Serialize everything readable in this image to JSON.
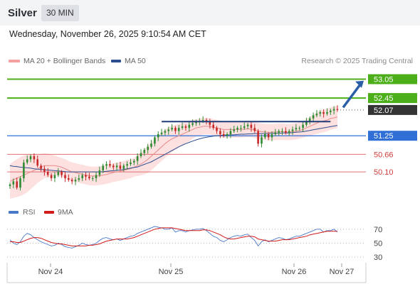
{
  "header": {
    "title": "Silver",
    "timeframe": "30 MIN"
  },
  "date_line": "Wednesday, November 26, 2025 9:10:54 AM CET",
  "legend": {
    "bollinger": "MA 20 + Bollinger Bands",
    "ma50": "MA 50"
  },
  "source": "Research © 2025 Trading Central",
  "rsi_legend": {
    "rsi": "RSI",
    "ma9": "9MA"
  },
  "colors": {
    "bollinger": "#f4a0a0",
    "ma50": "#2c4f8f",
    "up": "#2e8b32",
    "down": "#c62828",
    "resistance": "#4caf1a",
    "support": "#2f6fd6",
    "level": "#e07070",
    "current": "#333333"
  },
  "chart_data": [
    {
      "type": "candlestick",
      "title": "Silver",
      "timeframe": "30 MIN",
      "x_ticks": [
        "Nov 24",
        "Nov 25",
        "Nov 26",
        "Nov 27"
      ],
      "ylim": [
        49.2,
        53.4
      ],
      "price_levels": [
        {
          "value": 53.05,
          "label": "53.05",
          "kind": "target-resistance"
        },
        {
          "value": 52.45,
          "label": "52.45",
          "kind": "resistance"
        },
        {
          "value": 52.07,
          "label": "52.07",
          "kind": "current"
        },
        {
          "value": 51.25,
          "label": "51.25",
          "kind": "pivot"
        },
        {
          "value": 50.66,
          "label": "50.66",
          "kind": "support"
        },
        {
          "value": 50.1,
          "label": "50.10",
          "kind": "support"
        }
      ],
      "close_series": [
        49.7,
        49.8,
        49.6,
        49.9,
        50.4,
        50.5,
        50.6,
        50.5,
        50.3,
        50.2,
        50.1,
        50.0,
        49.9,
        50.0,
        50.1,
        50.0,
        49.9,
        49.85,
        49.8,
        49.85,
        49.9,
        50.0,
        49.95,
        49.9,
        49.9,
        50.0,
        50.15,
        50.3,
        50.35,
        50.3,
        50.25,
        50.3,
        50.2,
        50.3,
        50.35,
        50.4,
        50.45,
        50.6,
        50.7,
        50.8,
        50.9,
        51.0,
        51.2,
        51.3,
        51.35,
        51.4,
        51.45,
        51.5,
        51.4,
        51.5,
        51.55,
        51.5,
        51.6,
        51.65,
        51.7,
        51.72,
        51.75,
        51.7,
        51.6,
        51.5,
        51.4,
        51.3,
        51.25,
        51.3,
        51.4,
        51.45,
        51.5,
        51.5,
        51.55,
        51.6,
        51.5,
        51.4,
        51.0,
        51.2,
        51.3,
        51.2,
        51.3,
        51.35,
        51.4,
        51.4,
        51.35,
        51.4,
        51.45,
        51.5,
        51.5,
        51.6,
        51.7,
        51.8,
        51.9,
        51.95,
        52.0,
        51.95,
        52.0,
        52.05,
        52.1,
        52.07
      ],
      "ma20_series": [
        49.8,
        49.85,
        49.9,
        49.95,
        50.0,
        50.05,
        50.1,
        50.15,
        50.2,
        50.25,
        50.3,
        50.3,
        50.3,
        50.3,
        50.28,
        50.25,
        50.2,
        50.15,
        50.1,
        50.08,
        50.05,
        50.03,
        50.0,
        49.98,
        49.97,
        49.97,
        49.98,
        50.0,
        50.02,
        50.05,
        50.08,
        50.1,
        50.12,
        50.15,
        50.18,
        50.2,
        50.25,
        50.3,
        50.35,
        50.42,
        50.5,
        50.6,
        50.7,
        50.8,
        50.9,
        51.0,
        51.08,
        51.15,
        51.2,
        51.25,
        51.3,
        51.35,
        51.4,
        51.45,
        51.5,
        51.52,
        51.55,
        51.55,
        51.55,
        51.52,
        51.5,
        51.47,
        51.45,
        51.45,
        51.45,
        51.45,
        51.45,
        51.45,
        51.46,
        51.47,
        51.46,
        51.44,
        51.4,
        51.38,
        51.37,
        51.36,
        51.36,
        51.37,
        51.38,
        51.38,
        51.37,
        51.37,
        51.38,
        51.4,
        51.42,
        51.45,
        51.5,
        51.55,
        51.6,
        51.65,
        51.7,
        51.72,
        51.75,
        51.8,
        51.82,
        51.85
      ],
      "ma50_series": [
        50.3,
        50.28,
        50.27,
        50.25,
        50.24,
        50.23,
        50.22,
        50.2,
        50.19,
        50.18,
        50.17,
        50.16,
        50.15,
        50.14,
        50.13,
        50.12,
        50.11,
        50.1,
        50.1,
        50.1,
        50.1,
        50.1,
        50.1,
        50.1,
        50.1,
        50.1,
        50.1,
        50.11,
        50.12,
        50.13,
        50.14,
        50.15,
        50.16,
        50.18,
        50.2,
        50.22,
        50.24,
        50.26,
        50.3,
        50.34,
        50.38,
        50.42,
        50.48,
        50.54,
        50.6,
        50.66,
        50.72,
        50.78,
        50.84,
        50.9,
        50.95,
        51.0,
        51.04,
        51.08,
        51.12,
        51.15,
        51.18,
        51.2,
        51.22,
        51.24,
        51.25,
        51.26,
        51.27,
        51.27,
        51.28,
        51.28,
        51.29,
        51.3,
        51.3,
        51.31,
        51.31,
        51.32,
        51.32,
        51.32,
        51.32,
        51.32,
        51.33,
        51.33,
        51.33,
        51.34,
        51.34,
        51.34,
        51.35,
        51.36,
        51.37,
        51.38,
        51.4,
        51.42,
        51.44,
        51.46,
        51.48,
        51.5,
        51.52,
        51.54,
        51.56,
        51.58
      ],
      "bb_halfwidth_series": [
        0.55,
        0.58,
        0.6,
        0.62,
        0.62,
        0.6,
        0.55,
        0.5,
        0.45,
        0.42,
        0.4,
        0.38,
        0.35,
        0.33,
        0.3,
        0.3,
        0.3,
        0.3,
        0.3,
        0.3,
        0.3,
        0.3,
        0.3,
        0.3,
        0.3,
        0.3,
        0.3,
        0.3,
        0.3,
        0.3,
        0.3,
        0.3,
        0.3,
        0.3,
        0.3,
        0.3,
        0.3,
        0.33,
        0.36,
        0.4,
        0.43,
        0.45,
        0.45,
        0.45,
        0.45,
        0.45,
        0.44,
        0.42,
        0.4,
        0.38,
        0.36,
        0.34,
        0.32,
        0.3,
        0.28,
        0.27,
        0.26,
        0.26,
        0.26,
        0.26,
        0.26,
        0.26,
        0.26,
        0.26,
        0.26,
        0.26,
        0.26,
        0.26,
        0.26,
        0.26,
        0.26,
        0.26,
        0.26,
        0.26,
        0.26,
        0.26,
        0.26,
        0.26,
        0.26,
        0.26,
        0.26,
        0.26,
        0.26,
        0.26,
        0.26,
        0.26,
        0.28,
        0.3,
        0.32,
        0.34,
        0.36,
        0.36,
        0.36,
        0.36,
        0.36,
        0.36
      ],
      "neckline": {
        "value": 51.7,
        "from_index": 44,
        "to_index": 93
      },
      "projection_arrow": {
        "from_value": 52.15,
        "to_value": 53.0
      }
    },
    {
      "type": "line",
      "title": "RSI",
      "ylim": [
        20,
        80
      ],
      "y_ticks": [
        70,
        50,
        30
      ],
      "series": [
        {
          "name": "RSI",
          "values": [
            55,
            50,
            48,
            52,
            60,
            64,
            62,
            58,
            55,
            52,
            50,
            48,
            46,
            47,
            50,
            48,
            45,
            44,
            43,
            45,
            47,
            50,
            48,
            47,
            48,
            50,
            54,
            57,
            58,
            56,
            55,
            56,
            54,
            56,
            58,
            60,
            61,
            64,
            66,
            68,
            70,
            72,
            74,
            73,
            72,
            70,
            70,
            72,
            66,
            68,
            68,
            66,
            68,
            69,
            70,
            70,
            71,
            68,
            64,
            60,
            58,
            54,
            52,
            55,
            58,
            60,
            61,
            60,
            62,
            63,
            58,
            54,
            46,
            52,
            55,
            52,
            54,
            56,
            58,
            57,
            55,
            56,
            58,
            60,
            60,
            62,
            64,
            66,
            68,
            70,
            70,
            66,
            68,
            68,
            70,
            66
          ]
        },
        {
          "name": "9MA",
          "values": [
            52,
            52,
            51,
            51,
            53,
            55,
            57,
            58,
            58,
            57,
            55,
            53,
            51,
            50,
            49,
            49,
            48,
            47,
            46,
            46,
            46,
            46,
            46,
            47,
            47,
            48,
            49,
            51,
            53,
            54,
            55,
            56,
            56,
            56,
            56,
            57,
            58,
            60,
            62,
            64,
            66,
            68,
            70,
            71,
            72,
            72,
            72,
            72,
            71,
            70,
            69,
            68,
            68,
            68,
            68,
            68,
            69,
            69,
            68,
            66,
            64,
            62,
            59,
            57,
            56,
            56,
            57,
            58,
            59,
            60,
            60,
            59,
            56,
            55,
            54,
            53,
            53,
            53,
            54,
            55,
            55,
            55,
            56,
            57,
            58,
            59,
            60,
            62,
            63,
            64,
            65,
            66,
            67,
            67,
            67,
            67
          ]
        }
      ]
    }
  ]
}
